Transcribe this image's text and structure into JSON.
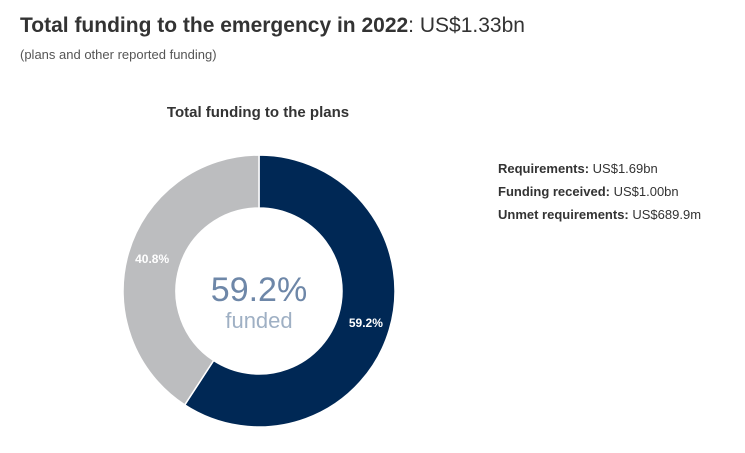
{
  "header": {
    "title": "Total funding to the emergency in 2022",
    "title_separator": ":",
    "title_value": "US$1.33bn",
    "subtitle": "(plans and other reported funding)"
  },
  "chart_data": {
    "type": "pie",
    "title": "Total funding to the plans",
    "slices": [
      {
        "label": "59.2%",
        "value": 59.2,
        "color": "#002855"
      },
      {
        "label": "40.8%",
        "value": 40.8,
        "color": "#bcbdbf"
      }
    ],
    "center_value": "59.2%",
    "center_label": "funded",
    "center_value_color": "#6e87a8",
    "center_label_color": "#9fb0c4",
    "summary": [
      {
        "key": "Requirements:",
        "value": "US$1.69bn"
      },
      {
        "key": "Funding received:",
        "value": "US$1.00bn"
      },
      {
        "key": "Unmet requirements:",
        "value": "US$689.9m"
      }
    ]
  }
}
